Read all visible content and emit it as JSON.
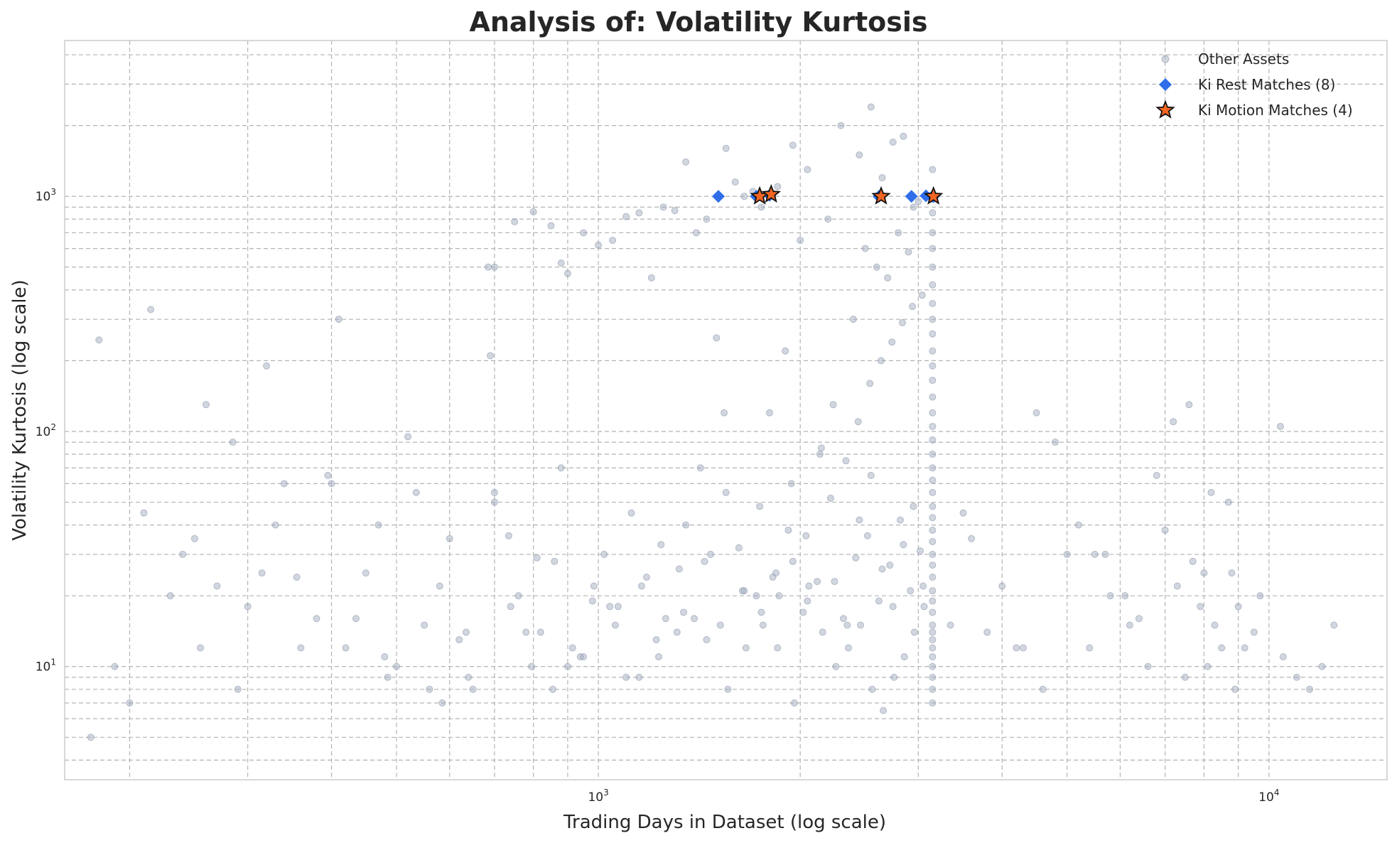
{
  "chart_data": {
    "type": "scatter",
    "title": "Analysis of: Volatility Kurtosis",
    "xlabel": "Trading Days in Dataset (log scale)",
    "ylabel": "Volatility Kurtosis (log scale)",
    "xscale": "log",
    "yscale": "log",
    "xlim": [
      160,
      15000
    ],
    "ylim": [
      3.3,
      4600
    ],
    "x_ticks": [
      {
        "base": "10",
        "exp": "3",
        "value": 1000
      },
      {
        "base": "10",
        "exp": "4",
        "value": 10000
      }
    ],
    "y_ticks": [
      {
        "base": "10",
        "exp": "1",
        "value": 10
      },
      {
        "base": "10",
        "exp": "2",
        "value": 100
      },
      {
        "base": "10",
        "exp": "3",
        "value": 1000
      }
    ],
    "grid": true,
    "legend_position": "top-right",
    "colors": {
      "other": "#9aa5b8",
      "rest": "#2f6ee8",
      "motion": "#f26522",
      "motion_edge": "#111111"
    },
    "series": [
      {
        "name": "Other Assets",
        "marker": "circle",
        "x": [
          180,
          210,
          240,
          270,
          300,
          330,
          360,
          400,
          450,
          500,
          550,
          600,
          650,
          700,
          760,
          820,
          880,
          950,
          1020,
          1100,
          1180,
          1260,
          1350,
          1450,
          1550,
          1650,
          1750,
          1850,
          1950,
          2050,
          2150,
          2250,
          2350,
          2450,
          2550,
          2650,
          2750,
          2850,
          2950,
          3050,
          3150,
          3150,
          3150,
          3150,
          3150,
          3150,
          3150,
          3150,
          3150,
          3150,
          3150,
          3150,
          3150,
          3150,
          3150,
          3150,
          3150,
          3150,
          3150,
          3150,
          3150,
          3150,
          3150,
          3150,
          3150,
          3150,
          3150,
          3150,
          3150,
          3150,
          3150,
          3150,
          3150,
          3150,
          3150,
          3150,
          3150,
          3150,
          3150,
          3150,
          190,
          230,
          260,
          290,
          340,
          380,
          420,
          470,
          520,
          580,
          640,
          700,
          780,
          860,
          940,
          1040,
          1120,
          1220,
          1320,
          1420,
          1520,
          1620,
          1720,
          1820,
          1920,
          2020,
          2120,
          2220,
          2320,
          2420,
          2520,
          2620,
          2720,
          2820,
          2920,
          3020,
          200,
          250,
          320,
          410,
          480,
          560,
          620,
          690,
          740,
          810,
          900,
          980,
          1060,
          1160,
          1240,
          1340,
          1440,
          1540,
          1640,
          1740,
          1840,
          1940,
          2040,
          2140,
          2240,
          2340,
          2440,
          2540,
          2640,
          2740,
          2840,
          2940,
          3040,
          175,
          215,
          255,
          285,
          315,
          355,
          395,
          435,
          485,
          535,
          585,
          635,
          685,
          735,
          795,
          855,
          915,
          985,
          1070,
          1150,
          1230,
          1310,
          1390,
          1470,
          1560,
          1660,
          1760,
          1860,
          1960,
          2060,
          2160,
          2260,
          2360,
          2460,
          2560,
          2660,
          2760,
          2860,
          2960,
          3060,
          1200,
          1500,
          1800,
          2000,
          2200,
          2400,
          2600,
          2800,
          3000,
          2500,
          2700,
          2900,
          1900,
          1700,
          1600,
          1400,
          1300,
          1100,
          1000,
          900,
          850,
          800,
          750,
          700,
          3350,
          3600,
          4000,
          4300,
          4600,
          5000,
          5400,
          5800,
          6200,
          6600,
          7000,
          7500,
          8000,
          8500,
          9000,
          9500,
          10500,
          11500,
          12500,
          3500,
          4200,
          4800,
          5500,
          6100,
          7200,
          7700,
          8200,
          8800,
          9700,
          12000,
          7600,
          8300,
          7900,
          10400,
          8700,
          5200,
          6800,
          3800,
          4500,
          9200,
          11000,
          6400,
          5700,
          8900,
          7300,
          8100,
          2300,
          2450,
          2550,
          2650,
          2750,
          2850,
          2950,
          1950,
          2050,
          1850,
          1750,
          1650,
          1550,
          1450,
          1350,
          1250,
          1150,
          1050,
          950,
          880
        ],
        "y": [
          245,
          45,
          30,
          22,
          18,
          40,
          12,
          60,
          25,
          10,
          15,
          35,
          8,
          50,
          20,
          14,
          70,
          11,
          30,
          9,
          24,
          16,
          40,
          13,
          55,
          21,
          17,
          12,
          28,
          19,
          85,
          23,
          15,
          42,
          65,
          26,
          18,
          33,
          48,
          22,
          7,
          8,
          9,
          10,
          11,
          12,
          13,
          14,
          15,
          17,
          19,
          21,
          24,
          27,
          30,
          34,
          38,
          43,
          48,
          55,
          62,
          70,
          80,
          92,
          105,
          120,
          140,
          165,
          190,
          220,
          260,
          300,
          350,
          420,
          500,
          600,
          700,
          850,
          1000,
          1300,
          10,
          20,
          130,
          8,
          60,
          16,
          12,
          40,
          95,
          22,
          9,
          55,
          14,
          28,
          11,
          18,
          45,
          13,
          26,
          70,
          15,
          32,
          20,
          24,
          38,
          17,
          23,
          52,
          16,
          29,
          36,
          19,
          27,
          42,
          21,
          31,
          7,
          35,
          190,
          300,
          11,
          8,
          13,
          210,
          18,
          29,
          10,
          19,
          15,
          22,
          33,
          17,
          28,
          120,
          21,
          48,
          25,
          60,
          36,
          80,
          130,
          75,
          110,
          160,
          200,
          240,
          290,
          340,
          380,
          5,
          330,
          12,
          90,
          25,
          24,
          65,
          16,
          9,
          55,
          7,
          14,
          500,
          36,
          10,
          8,
          12,
          22,
          18,
          9,
          11,
          14,
          16,
          30,
          8,
          12,
          15,
          20,
          7,
          22,
          14,
          10,
          12,
          15,
          8,
          6.5,
          9,
          11,
          14,
          18,
          450,
          250,
          120,
          650,
          800,
          300,
          500,
          700,
          950,
          600,
          450,
          580,
          220,
          1050,
          1150,
          700,
          870,
          820,
          620,
          470,
          750,
          860,
          780,
          500,
          15,
          35,
          22,
          12,
          8,
          30,
          12,
          20,
          15,
          10,
          38,
          9,
          25,
          12,
          18,
          14,
          11,
          8,
          15,
          45,
          12,
          90,
          30,
          20,
          110,
          28,
          55,
          25,
          20,
          10,
          130,
          15,
          18,
          105,
          50,
          40,
          65,
          14,
          120,
          12,
          9,
          16,
          30,
          8,
          22,
          10,
          2000,
          1500,
          2400,
          1200,
          1700,
          1800,
          900,
          1650,
          1300,
          1100,
          900,
          1000,
          1600,
          800,
          1400,
          900,
          850,
          650,
          700,
          520
        ]
      },
      {
        "name": "Ki Rest Matches (8)",
        "marker": "diamond",
        "x": [
          1510,
          1720,
          1800,
          2620,
          2930,
          3080,
          3150,
          3160
        ],
        "y": [
          1000,
          1000,
          1010,
          1000,
          1000,
          1005,
          1000,
          998
        ]
      },
      {
        "name": "Ki Motion Matches (4)",
        "marker": "star",
        "x": [
          1740,
          1810,
          2640,
          3160
        ],
        "y": [
          1000,
          1020,
          1000,
          1000
        ]
      }
    ]
  }
}
